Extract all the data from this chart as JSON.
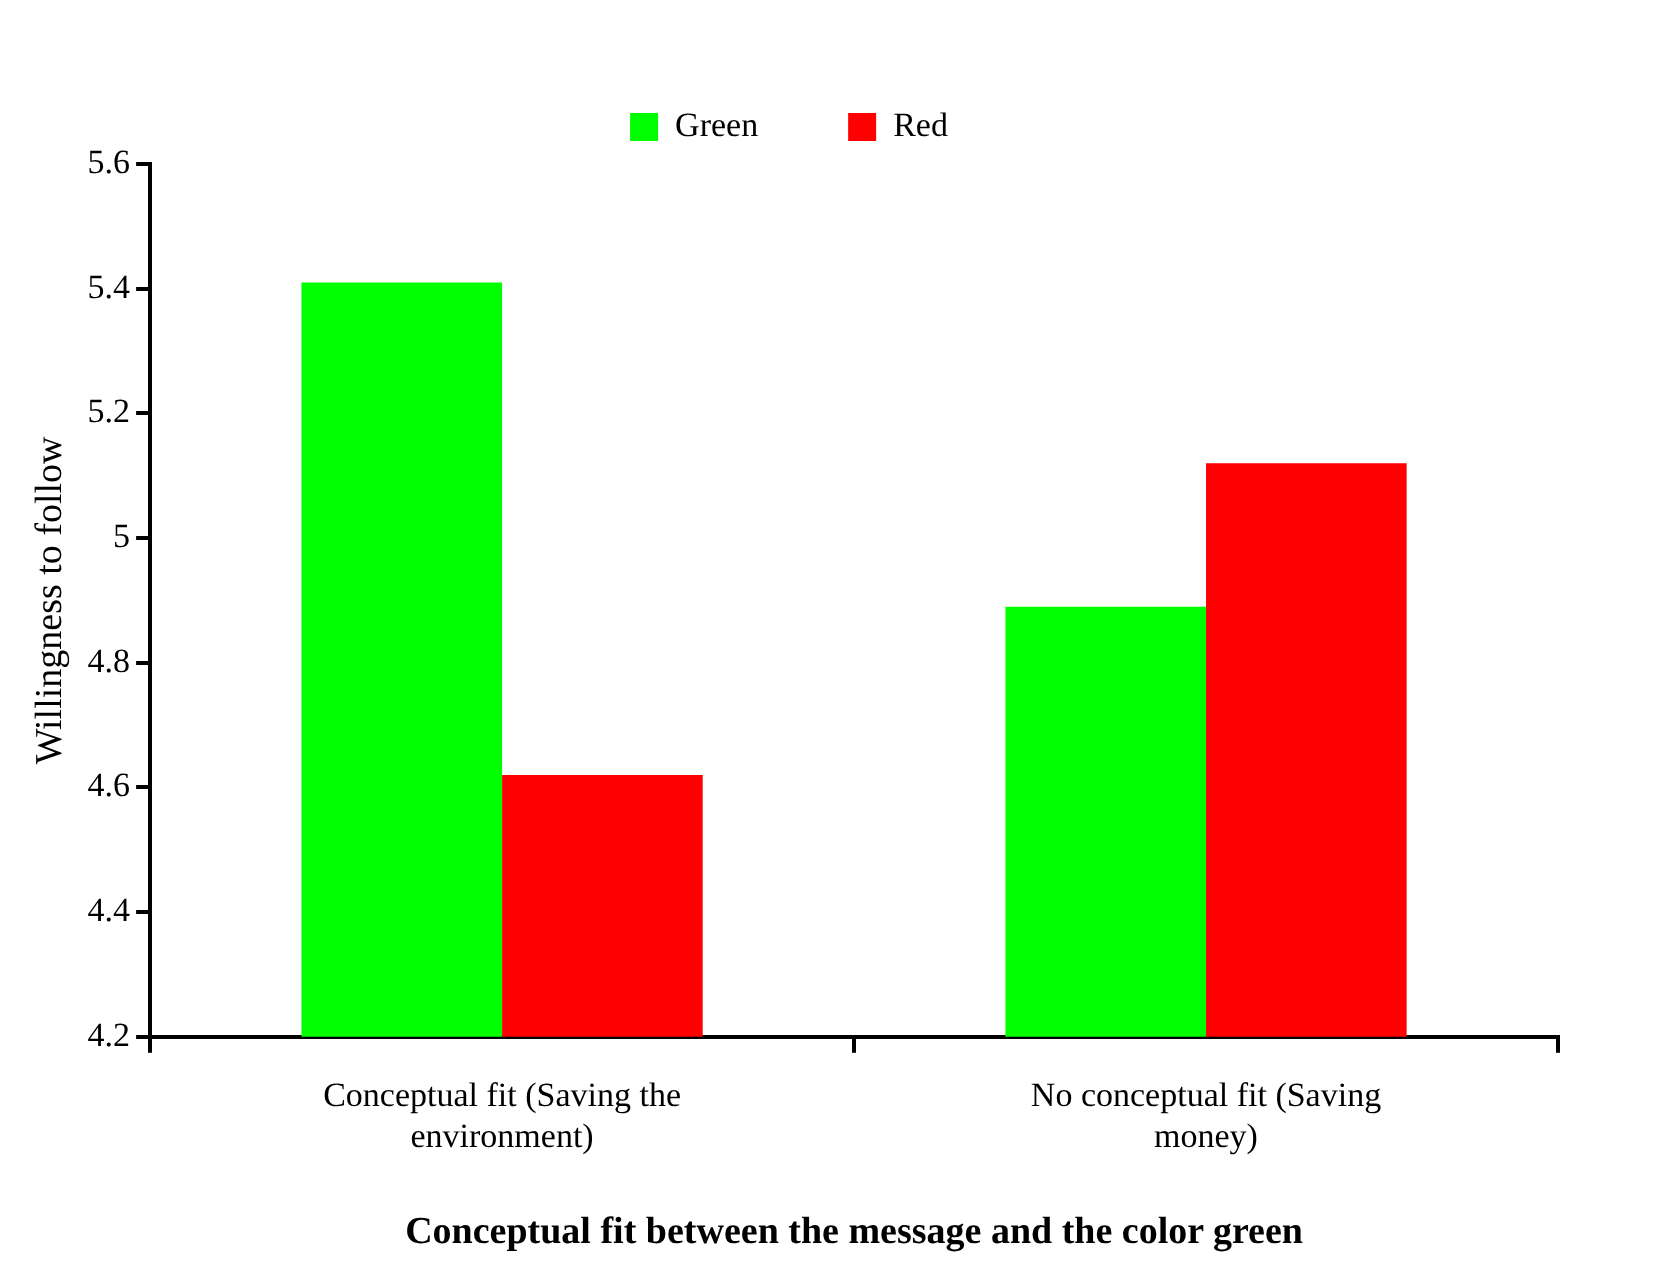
{
  "chart_data": {
    "type": "bar",
    "xlabel": "Conceptual fit between the message and the color green",
    "ylabel": "Willingness to follow",
    "categories": [
      "Conceptual fit (Saving the environment)",
      "No conceptual fit (Saving money)"
    ],
    "series": [
      {
        "name": "Green",
        "color": "#00ff00",
        "values": [
          5.41,
          4.89
        ]
      },
      {
        "name": "Red",
        "color": "#ff0000",
        "values": [
          4.62,
          5.12
        ]
      }
    ],
    "ylim": [
      4.2,
      5.6
    ],
    "yticks": [
      4.2,
      4.4,
      4.6,
      4.8,
      5,
      5.2,
      5.4,
      5.6
    ],
    "grid": false,
    "legend": "top"
  }
}
